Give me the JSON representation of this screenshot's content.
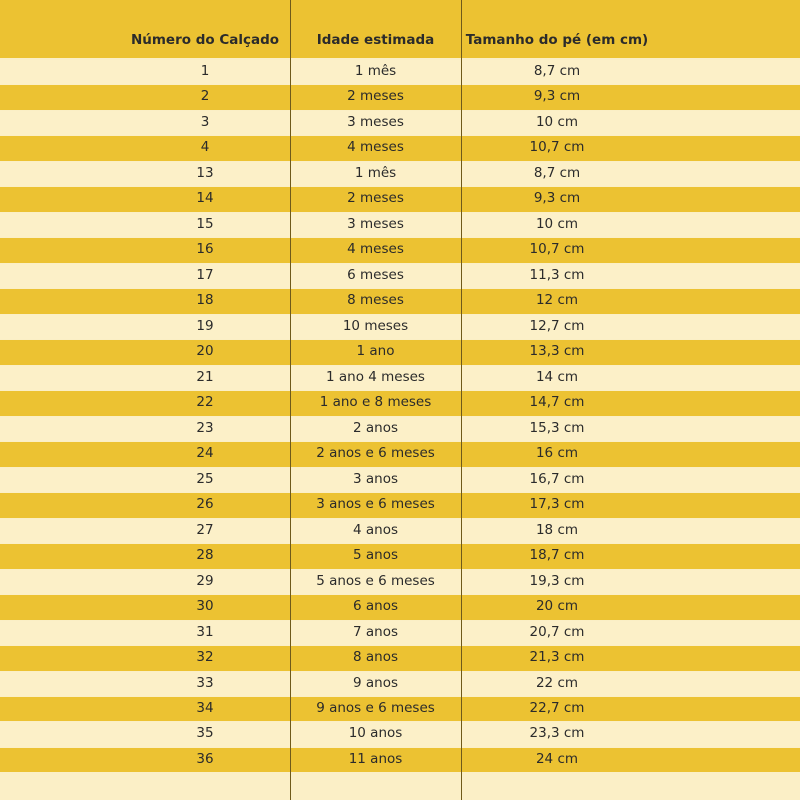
{
  "table": {
    "header": [
      "Número do Calçado",
      "Idade estimada",
      "Tamanho do pé (em cm)"
    ],
    "rows": [
      [
        "1",
        "1 mês",
        "8,7 cm"
      ],
      [
        "2",
        "2 meses",
        "9,3 cm"
      ],
      [
        "3",
        "3 meses",
        "10 cm"
      ],
      [
        "4",
        "4 meses",
        "10,7 cm"
      ],
      [
        "13",
        "1 mês",
        "8,7 cm"
      ],
      [
        "14",
        "2 meses",
        "9,3 cm"
      ],
      [
        "15",
        "3 meses",
        "10 cm"
      ],
      [
        "16",
        "4 meses",
        "10,7 cm"
      ],
      [
        "17",
        "6 meses",
        "11,3 cm"
      ],
      [
        "18",
        "8 meses",
        "12 cm"
      ],
      [
        "19",
        "10 meses",
        "12,7 cm"
      ],
      [
        "20",
        "1 ano",
        "13,3 cm"
      ],
      [
        "21",
        "1 ano 4 meses",
        "14 cm"
      ],
      [
        "22",
        "1 ano e 8 meses",
        "14,7 cm"
      ],
      [
        "23",
        "2 anos",
        "15,3 cm"
      ],
      [
        "24",
        "2 anos e 6 meses",
        "16 cm"
      ],
      [
        "25",
        "3 anos",
        "16,7 cm"
      ],
      [
        "26",
        "3 anos e 6 meses",
        "17,3 cm"
      ],
      [
        "27",
        "4 anos",
        "18 cm"
      ],
      [
        "28",
        "5 anos",
        "18,7 cm"
      ],
      [
        "29",
        "5 anos e 6 meses",
        "19,3 cm"
      ],
      [
        "30",
        "6 anos",
        "20 cm"
      ],
      [
        "31",
        "7 anos",
        "20,7 cm"
      ],
      [
        "32",
        "8 anos",
        "21,3 cm"
      ],
      [
        "33",
        "9 anos",
        "22 cm"
      ],
      [
        "34",
        "9 anos e 6 meses",
        "22,7 cm"
      ],
      [
        "35",
        "10 anos",
        "23,3 cm"
      ],
      [
        "36",
        "11 anos",
        "24 cm"
      ]
    ]
  }
}
